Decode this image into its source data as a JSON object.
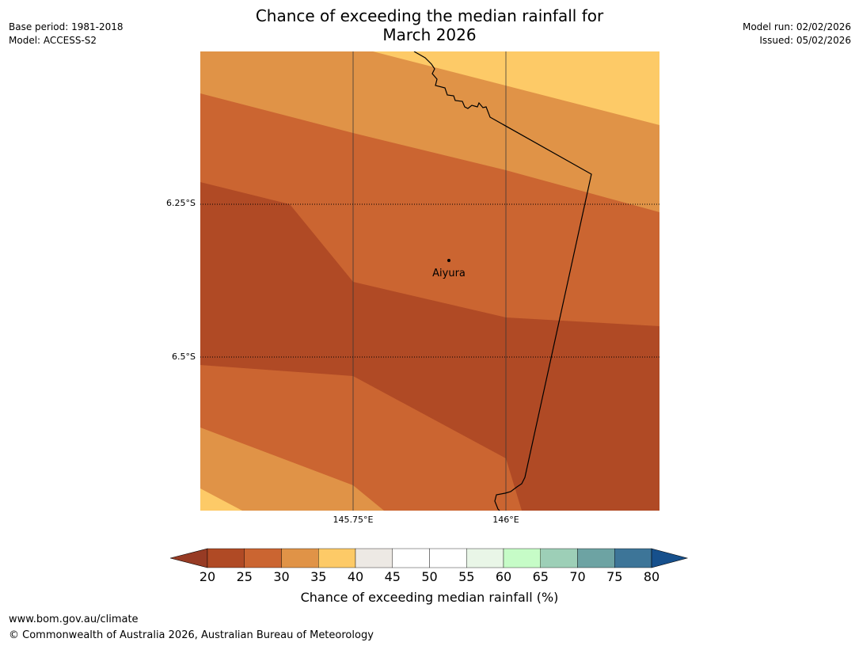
{
  "title": {
    "line1": "Chance of exceeding the median rainfall for",
    "line2": "March 2026"
  },
  "meta_left": {
    "base_period": "Base period: 1981-2018",
    "model": "Model: ACCESS-S2"
  },
  "meta_right": {
    "model_run": "Model run: 02/02/2026",
    "issued": "Issued: 05/02/2026"
  },
  "map": {
    "lat_labels": [
      "6.25°S",
      "6.5°S"
    ],
    "lon_labels": [
      "145.75°E",
      "146°E"
    ],
    "place_name": "Aiyura"
  },
  "colorbar": {
    "ticks": [
      "20",
      "25",
      "30",
      "35",
      "40",
      "45",
      "50",
      "55",
      "60",
      "65",
      "70",
      "75",
      "80"
    ],
    "colors": [
      "#B04A25",
      "#CB6531",
      "#E09347",
      "#FDCA67",
      "#EDE9E4",
      "#FFFFFF",
      "#FFFFFF",
      "#E9F6E7",
      "#C6FCC7",
      "#9DCFB7",
      "#6DA3A3",
      "#3D7598"
    ],
    "low_extend_color": "#973B24",
    "high_extend_color": "#16508C",
    "label": "Chance of exceeding median rainfall (%)"
  },
  "footer": {
    "url": "www.bom.gov.au/climate",
    "copyright": "© Commonwealth of Australia 2026, Australian Bureau of Meteorology"
  }
}
